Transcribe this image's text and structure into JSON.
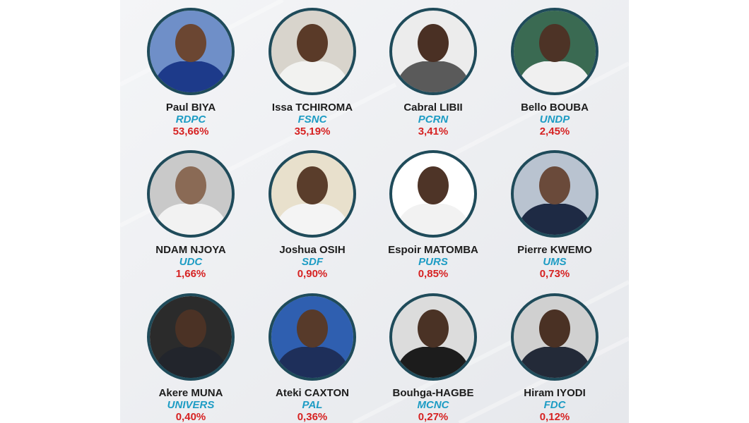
{
  "candidates": [
    {
      "name": "Paul BIYA",
      "party": "RDPC",
      "result": "53,66%"
    },
    {
      "name": "Issa TCHIROMA",
      "party": "FSNC",
      "result": "35,19%"
    },
    {
      "name": "Cabral LIBII",
      "party": "PCRN",
      "result": "3,41%"
    },
    {
      "name": "Bello BOUBA",
      "party": "UNDP",
      "result": "2,45%"
    },
    {
      "name": "NDAM NJOYA",
      "party": "UDC",
      "result": "1,66%"
    },
    {
      "name": "Joshua OSIH",
      "party": "SDF",
      "result": "0,90%"
    },
    {
      "name": "Espoir MATOMBA",
      "party": "PURS",
      "result": "0,85%"
    },
    {
      "name": "Pierre KWEMO",
      "party": "UMS",
      "result": "0,73%"
    },
    {
      "name": "Akere MUNA",
      "party": "UNIVERS",
      "result": "0,40%"
    },
    {
      "name": "Ateki CAXTON",
      "party": "PAL",
      "result": "0,36%"
    },
    {
      "name": "Bouhga-HAGBE",
      "party": "MCNC",
      "result": "0,27%"
    },
    {
      "name": "Hiram IYODI",
      "party": "FDC",
      "result": "0,12%"
    }
  ]
}
